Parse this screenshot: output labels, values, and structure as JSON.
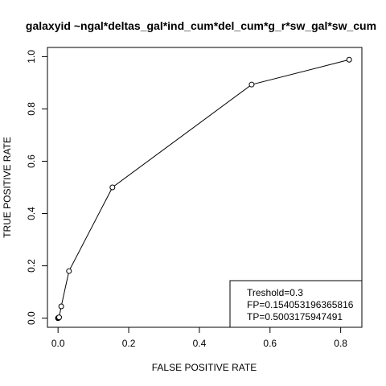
{
  "chart_data": {
    "type": "line",
    "title": "galaxyid ~ngal*deltas_gal*ind_cum*del_cum*g_r*sw_gal*sw_cum",
    "xlabel": "FALSE POSITIVE RATE",
    "ylabel": "TRUE POSITIVE RATE",
    "xlim": [
      -0.03,
      0.86
    ],
    "ylim": [
      -0.035,
      1.035
    ],
    "x_ticks": [
      0.0,
      0.2,
      0.4,
      0.6,
      0.8
    ],
    "x_tick_labels": [
      "0.0",
      "0.2",
      "0.4",
      "0.6",
      "0.8"
    ],
    "y_ticks": [
      0.0,
      0.2,
      0.4,
      0.6,
      0.8,
      1.0
    ],
    "y_tick_labels": [
      "0.0",
      "0.2",
      "0.4",
      "0.6",
      "0.8",
      "1.0"
    ],
    "grid": false,
    "series": [
      {
        "x": [
          0.0,
          0.0,
          0.001,
          0.002,
          0.003,
          0.009,
          0.031,
          0.154,
          0.548,
          0.824
        ],
        "y": [
          0.0,
          0.0,
          0.001,
          0.002,
          0.003,
          0.045,
          0.18,
          0.5,
          0.893,
          0.988
        ],
        "marker": "open-circle",
        "line": "solid"
      }
    ],
    "legend": {
      "position": "bottom-right",
      "lines": [
        "Treshold=0.3",
        "FP=0.154053196365816",
        "TP=0.5003175947491"
      ]
    }
  }
}
